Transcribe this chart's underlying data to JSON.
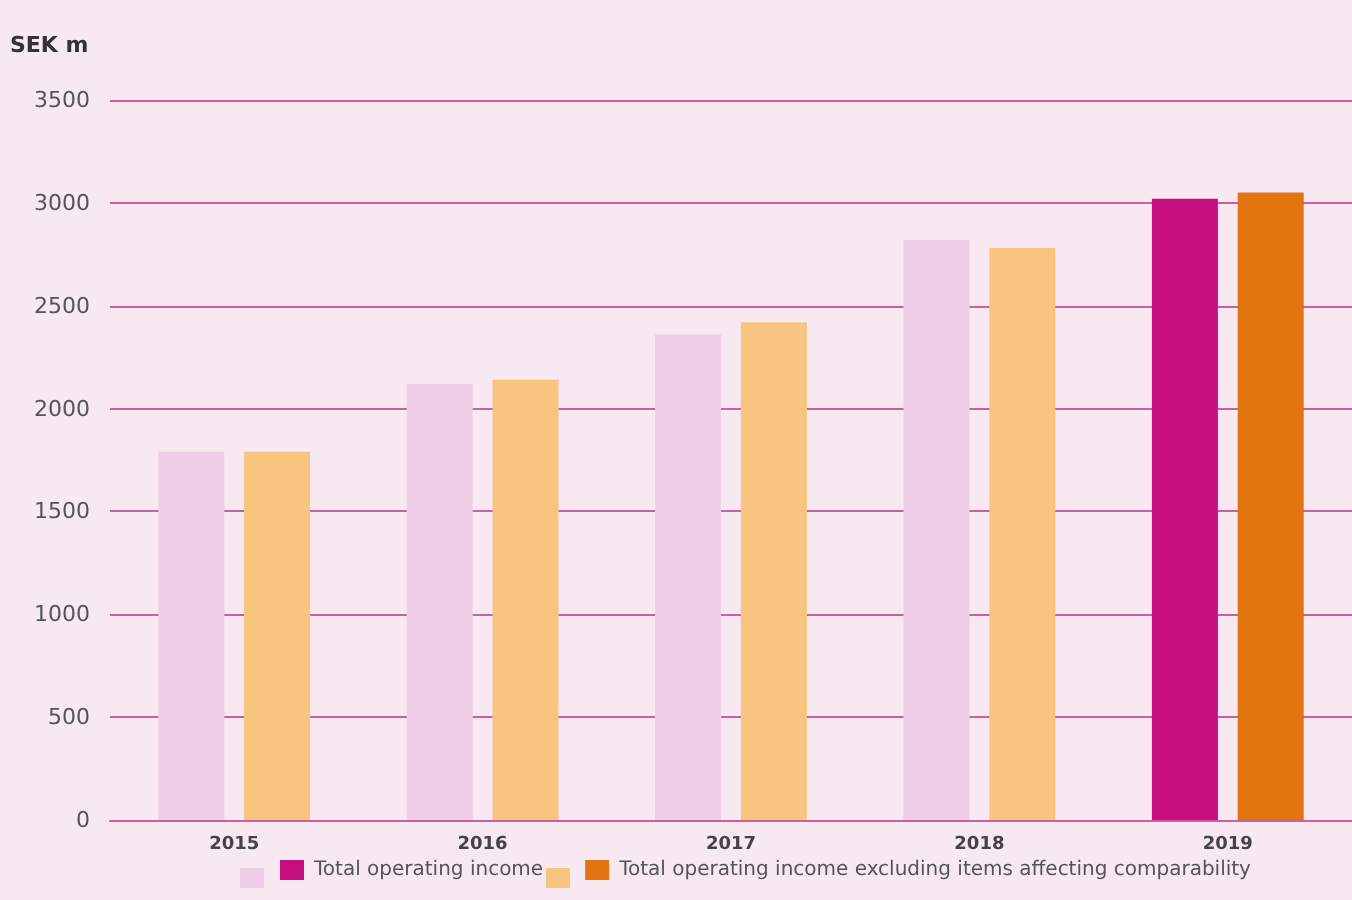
{
  "chart_data": {
    "type": "bar",
    "ylabel": "SEK m",
    "categories": [
      "2015",
      "2016",
      "2017",
      "2018",
      "2019"
    ],
    "series": [
      {
        "name": "Total operating income",
        "color": "#c70e80",
        "colors": [
          "#efcde6",
          "#efcde6",
          "#efcde6",
          "#efcde6",
          "#c70e80"
        ],
        "values": [
          1790,
          2120,
          2360,
          2820,
          3020
        ]
      },
      {
        "name": "Total operating income excluding items affecting comparability",
        "color": "#e2750f",
        "colors": [
          "#f8c581",
          "#f8c581",
          "#f8c581",
          "#f8c581",
          "#e2750f"
        ],
        "values": [
          1790,
          2140,
          2420,
          2780,
          3050
        ]
      }
    ],
    "ylim": [
      0,
      3500
    ],
    "yticks": [
      0,
      500,
      1000,
      1500,
      2000,
      2500,
      3000,
      3500
    ],
    "grid": "y",
    "legend": "bottom"
  }
}
